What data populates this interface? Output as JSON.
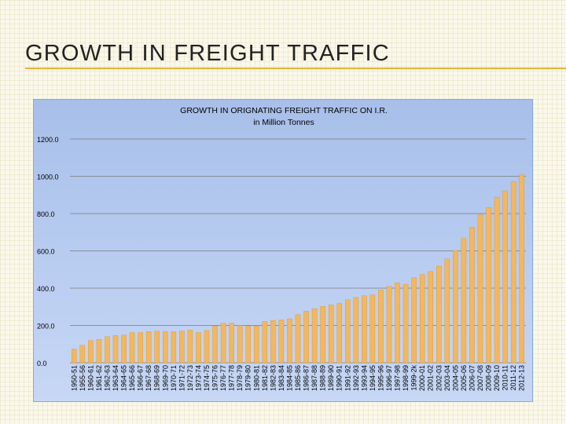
{
  "slide": {
    "title": "GROWTH IN FREIGHT TRAFFIC"
  },
  "colors": {
    "accent_rule": "#e8b43a",
    "bar_fill": "#f5b75b",
    "bar_stroke": "#d9952d",
    "plot_background": "#b7ccf0"
  },
  "chart_data": {
    "type": "bar",
    "title": "GROWTH IN ORIGNATING FREIGHT TRAFFIC ON I.R.",
    "subtitle": "in Million Tonnes",
    "xlabel": "",
    "ylabel": "",
    "ylim": [
      0,
      1200
    ],
    "yticks": [
      0,
      200,
      400,
      600,
      800,
      1000,
      1200
    ],
    "ytick_labels": [
      "0.0",
      "200.0",
      "400.0",
      "600.0",
      "800.0",
      "1000.0",
      "1200.0"
    ],
    "grid": true,
    "legend": false,
    "categories": [
      "1950-51",
      "1955-56",
      "1960-61",
      "1961-62",
      "1962-63",
      "1963-64",
      "1964-65",
      "1965-66",
      "1966-67",
      "1967-68",
      "1968-69",
      "1969-70",
      "1970-71",
      "1971-72",
      "1972-73",
      "1973-74",
      "1974-75",
      "1975-76",
      "1976-77",
      "1977-78",
      "1978-79",
      "1979-80",
      "1980-81",
      "1981-82",
      "1982-83",
      "1983-84",
      "1984-85",
      "1985-86",
      "1986-87",
      "1987-88",
      "1988-89",
      "1989-90",
      "1990-91",
      "1991-92",
      "1992-93",
      "1993-94",
      "1994-95",
      "1995-96",
      "1996-97",
      "1997-98",
      "1998-99",
      "1999-2k",
      "2000-01",
      "2001-02",
      "2002-03",
      "2003-04",
      "2004-05",
      "2005-06",
      "2006-07",
      "2007-08",
      "2008-09",
      "2009-10",
      "2010-11",
      "2011-12",
      "2012-13"
    ],
    "values": [
      73,
      94,
      119,
      125,
      140,
      146,
      148,
      162,
      162,
      167,
      170,
      168,
      167,
      170,
      175,
      162,
      173,
      197,
      212,
      212,
      200,
      196,
      196,
      221,
      227,
      230,
      236,
      258,
      277,
      290,
      302,
      310,
      318,
      338,
      350,
      359,
      364,
      390,
      409,
      429,
      421,
      456,
      473,
      490,
      518,
      557,
      602,
      667,
      728,
      794,
      833,
      888,
      922,
      970,
      1008
    ]
  }
}
